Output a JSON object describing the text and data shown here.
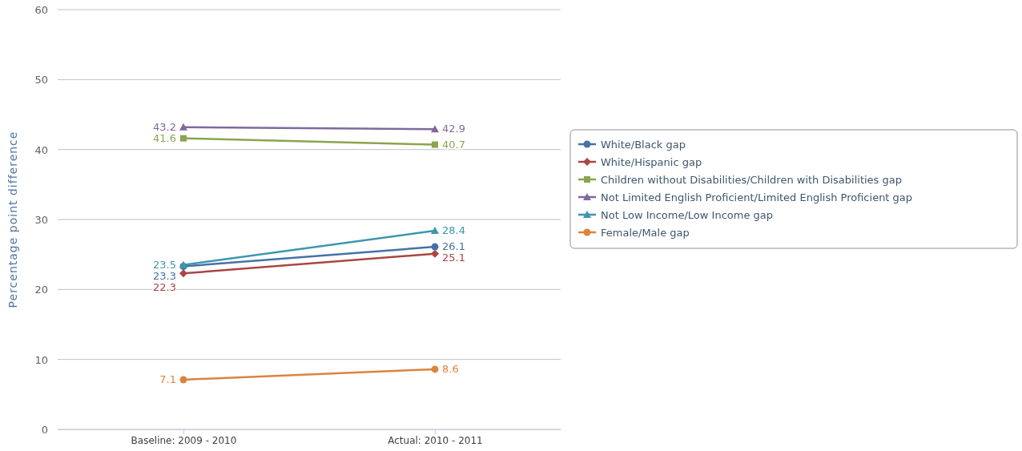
{
  "chart_data": {
    "type": "line",
    "ylabel": "Percentage point difference",
    "categories": [
      "Baseline: 2009 - 2010",
      "Actual: 2010 - 2011"
    ],
    "ylim": [
      0,
      60
    ],
    "yticks": [
      0,
      10,
      20,
      30,
      40,
      50,
      60
    ],
    "grid": "y",
    "legend": "right",
    "data_labels": true,
    "series": [
      {
        "name": "White/Black gap",
        "color": "#4572a7",
        "marker": "circle",
        "values": [
          23.3,
          26.1
        ]
      },
      {
        "name": "White/Hispanic gap",
        "color": "#aa4643",
        "marker": "diamond",
        "values": [
          22.3,
          25.1
        ]
      },
      {
        "name": "Children without Disabilities/Children with Disabilities gap",
        "color": "#89a54e",
        "marker": "square",
        "values": [
          41.6,
          40.7
        ]
      },
      {
        "name": "Not Limited English Proficient/Limited English Proficient gap",
        "color": "#80699b",
        "marker": "triangle",
        "values": [
          43.2,
          42.9
        ]
      },
      {
        "name": "Not Low Income/Low Income gap",
        "color": "#3d96ae",
        "marker": "triangle",
        "values": [
          23.5,
          28.4
        ]
      },
      {
        "name": "Female/Male gap",
        "color": "#db843d",
        "marker": "circle",
        "values": [
          7.1,
          8.6
        ]
      }
    ]
  }
}
